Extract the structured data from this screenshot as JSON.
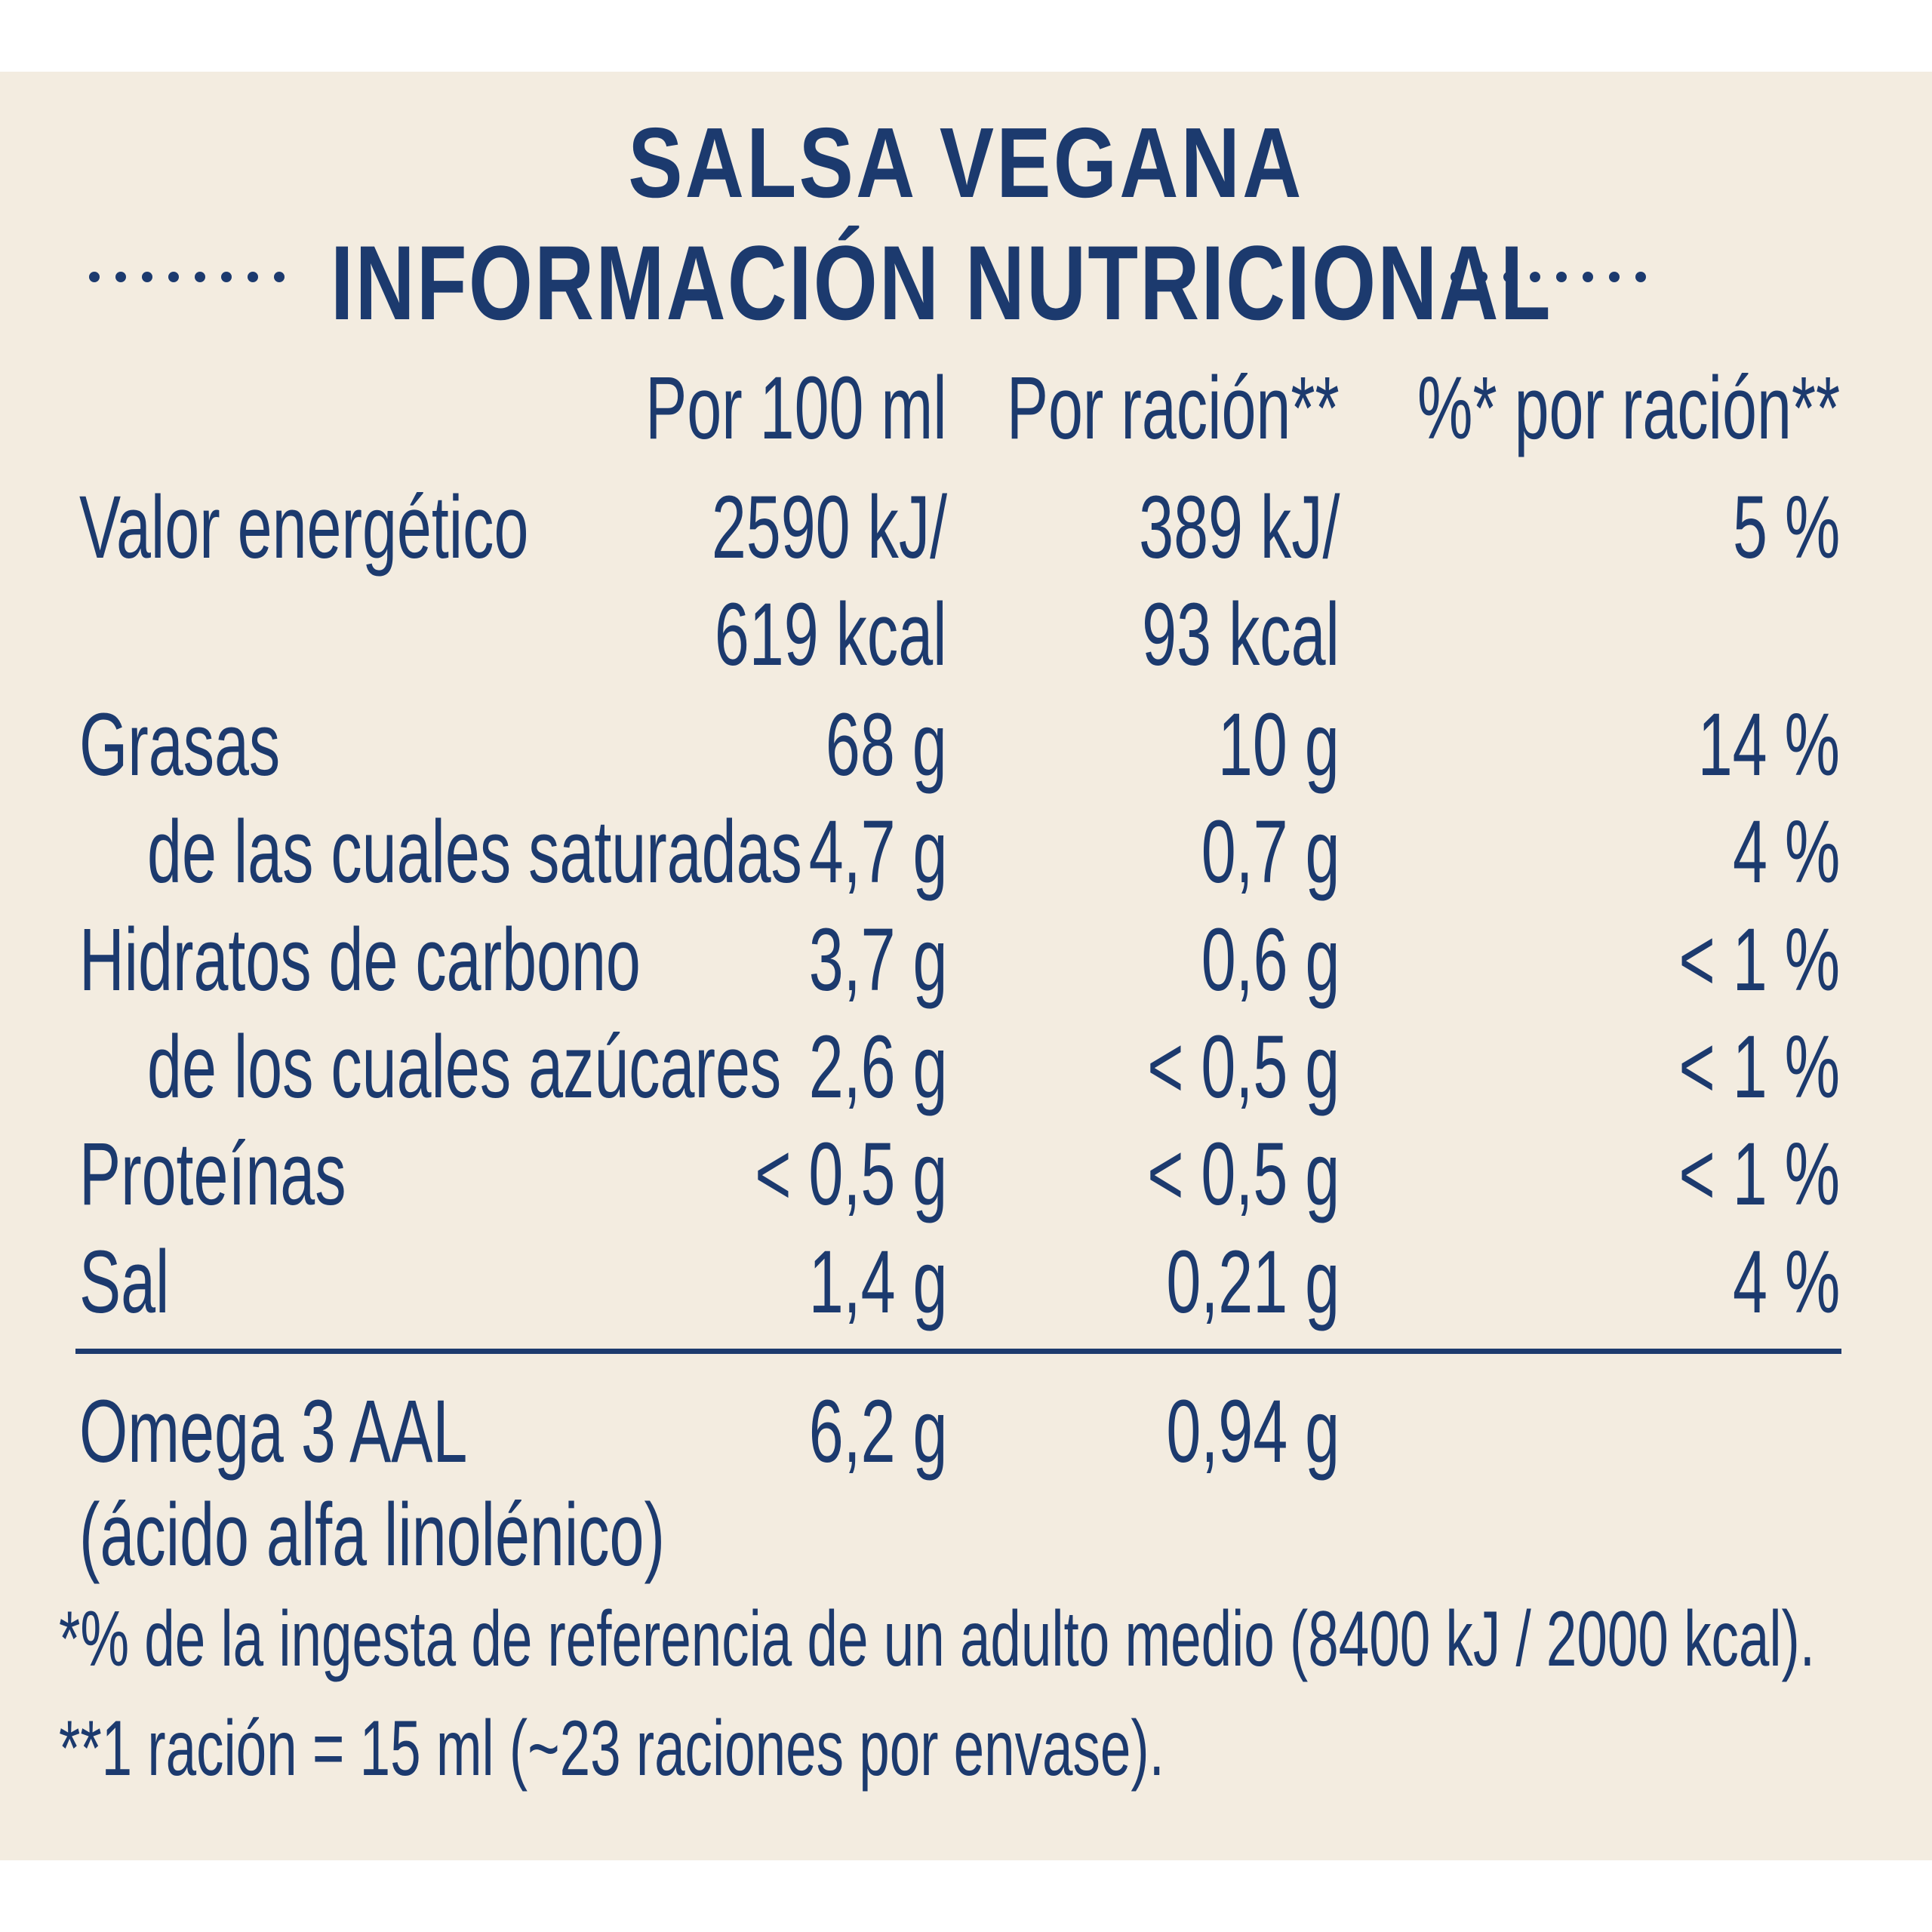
{
  "title": "SALSA VEGANA",
  "subtitle": "INFORMACIÓN NUTRICIONAL",
  "columns": [
    "Por 100 ml",
    "Por ración**",
    "%* por ración**"
  ],
  "rows": [
    {
      "label": "Valor energético",
      "per100": "2590 kJ/",
      "perServing": "389 kJ/",
      "pct": "5 %"
    },
    {
      "label": "",
      "per100": "619 kcal",
      "perServing": "93 kcal",
      "pct": ""
    },
    {
      "label": "Grasas",
      "per100": "68 g",
      "perServing": "10 g",
      "pct": "14 %"
    },
    {
      "label": "de las cuales saturadas",
      "per100": "4,7 g",
      "perServing": "0,7 g",
      "pct": "4 %"
    },
    {
      "label": "Hidratos de carbono",
      "per100": "3,7 g",
      "perServing": "0,6 g",
      "pct": "< 1 %"
    },
    {
      "label": "de los cuales azúcares",
      "per100": "2,6 g",
      "perServing": "< 0,5 g",
      "pct": "< 1 %"
    },
    {
      "label": "Proteínas",
      "per100": "< 0,5 g",
      "perServing": "< 0,5 g",
      "pct": "< 1 %"
    },
    {
      "label": "Sal",
      "per100": "1,4 g",
      "perServing": "0,21 g",
      "pct": "4 %"
    }
  ],
  "omega": {
    "label": "Omega 3 AAL",
    "label2": "(ácido alfa linolénico)",
    "per100": "6,2 g",
    "perServing": "0,94 g"
  },
  "footnotes": [
    "*% de la ingesta de referencia de un adulto medio (8400 kJ / 2000 kcal).",
    "**1 ración = 15 ml (~23 raciones por envase)."
  ],
  "colors": {
    "text": "#1c3a6e",
    "background": "#f3ece0"
  }
}
